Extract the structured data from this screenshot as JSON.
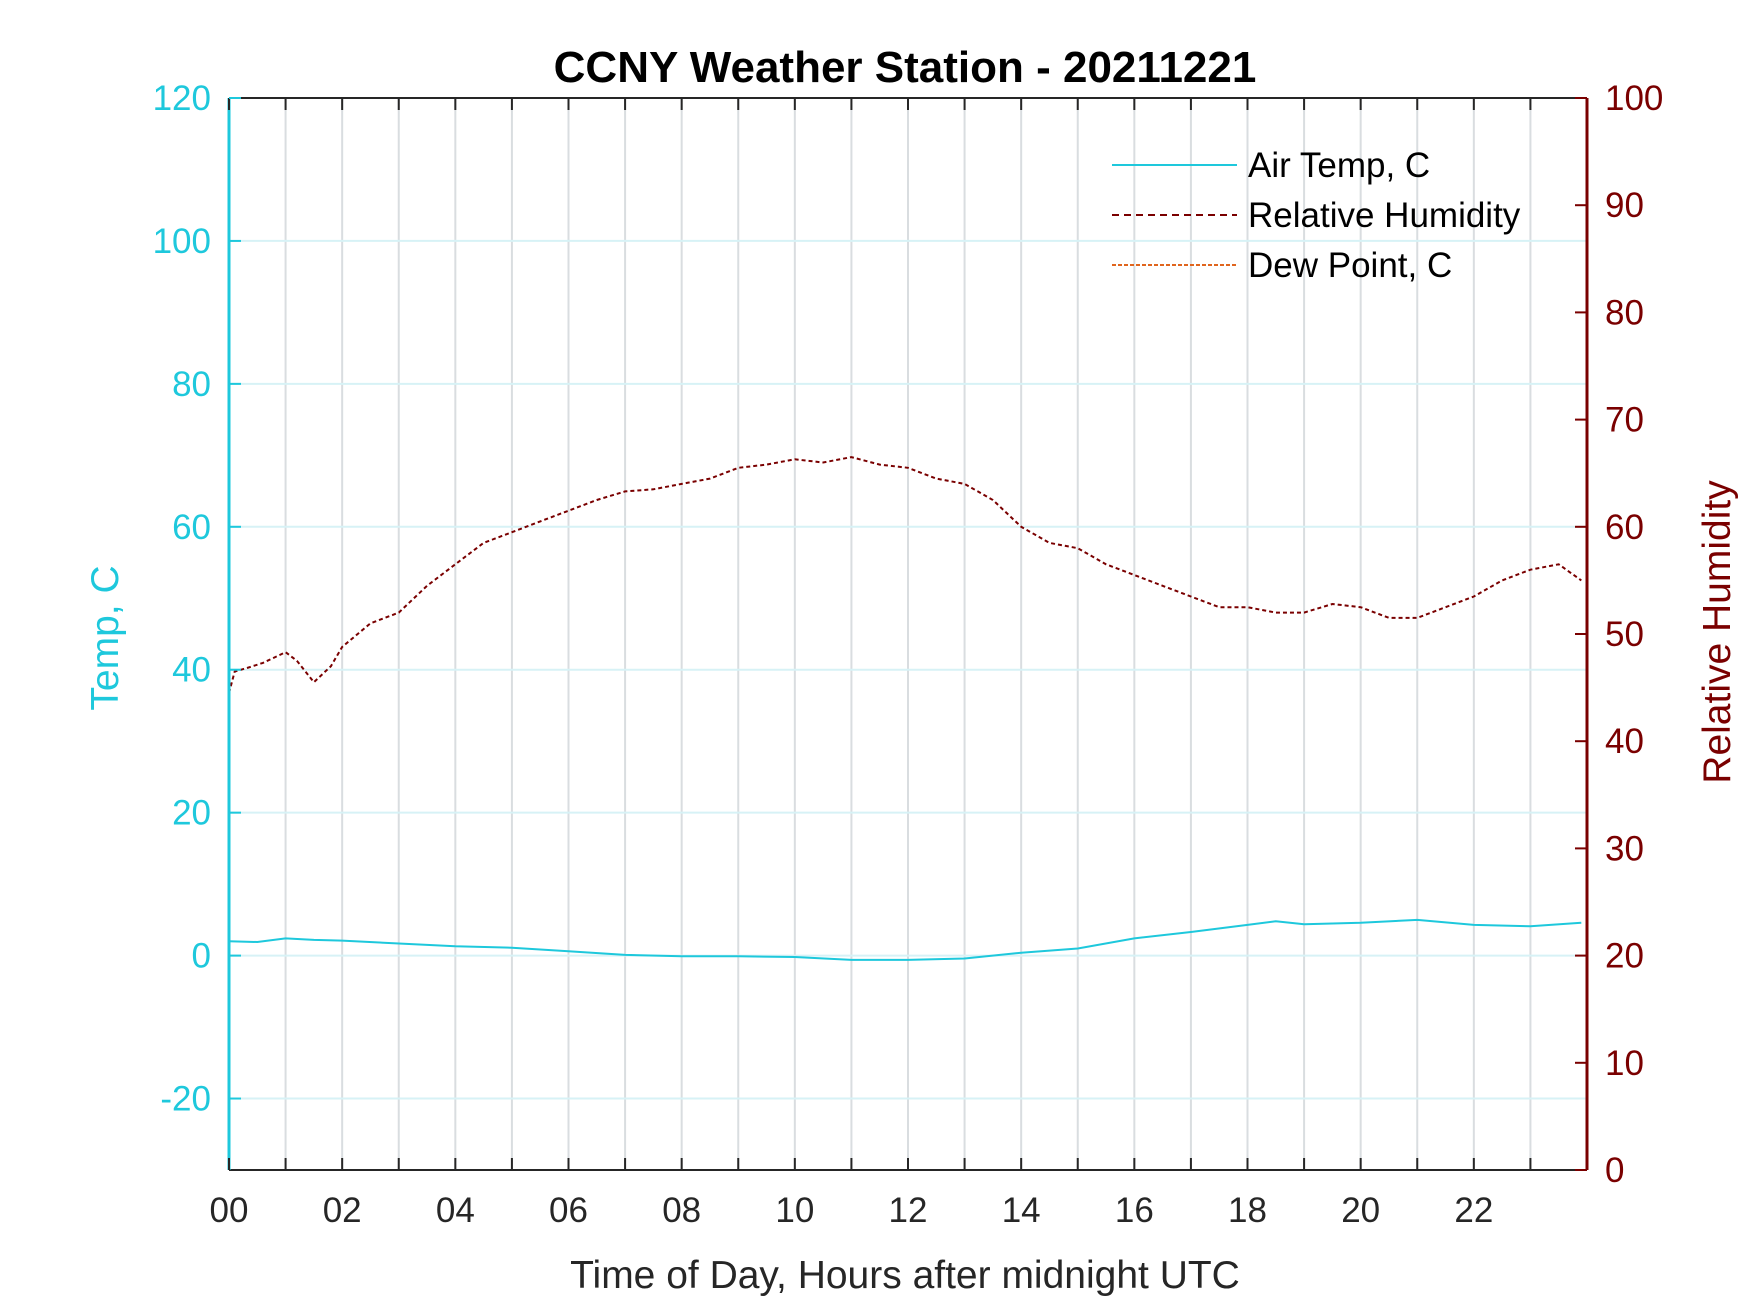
{
  "colors": {
    "temp": "#1ec8dc",
    "humidity": "#7a0000",
    "dewpoint": "#e0651e",
    "grid": "#d9dde0",
    "axis": "#262626"
  },
  "chart_data": {
    "type": "line",
    "title": "CCNY Weather Station - 20211221",
    "xlabel": "Time of Day, Hours after midnight UTC",
    "ylabel_left": "Temp, C",
    "ylabel_right": "Relative Humidity",
    "xlim": [
      0,
      24
    ],
    "ylim_left": [
      -30,
      120
    ],
    "ylim_right": [
      0,
      100
    ],
    "x_ticks": [
      0,
      2,
      4,
      6,
      8,
      10,
      12,
      14,
      16,
      18,
      20,
      22
    ],
    "x_tick_labels": [
      "00",
      "02",
      "04",
      "06",
      "08",
      "10",
      "12",
      "14",
      "16",
      "18",
      "20",
      "22"
    ],
    "x_minor_ticks": [
      1,
      3,
      5,
      7,
      9,
      11,
      13,
      15,
      17,
      19,
      21,
      23
    ],
    "y_left_ticks": [
      -20,
      0,
      20,
      40,
      60,
      80,
      100,
      120
    ],
    "y_left_tick_labels": [
      "-20",
      "0",
      "20",
      "40",
      "60",
      "80",
      "100",
      "120"
    ],
    "y_right_ticks": [
      0,
      10,
      20,
      30,
      40,
      50,
      60,
      70,
      80,
      90,
      100
    ],
    "y_right_tick_labels": [
      "0",
      "10",
      "20",
      "30",
      "40",
      "50",
      "60",
      "70",
      "80",
      "90",
      "100"
    ],
    "grid": true,
    "legend_position": "top-right",
    "series": [
      {
        "name": "Air Temp, C",
        "axis": "left",
        "style": "solid",
        "x": [
          0,
          0.5,
          1,
          1.5,
          2,
          3,
          4,
          5,
          6,
          7,
          8,
          9,
          10,
          11,
          12,
          13,
          14,
          15,
          16,
          17,
          18,
          18.5,
          19,
          20,
          21,
          22,
          23,
          23.9
        ],
        "y": [
          2.0,
          1.9,
          2.4,
          2.2,
          2.1,
          1.7,
          1.3,
          1.1,
          0.6,
          0.1,
          -0.1,
          -0.1,
          -0.2,
          -0.6,
          -0.6,
          -0.4,
          0.4,
          1.0,
          2.4,
          3.3,
          4.3,
          4.8,
          4.4,
          4.6,
          5.0,
          4.3,
          4.1,
          4.6
        ]
      },
      {
        "name": "Relative Humidity",
        "axis": "right",
        "style": "dashed",
        "x": [
          0,
          0.1,
          0.3,
          0.6,
          1.0,
          1.2,
          1.5,
          1.8,
          2.0,
          2.5,
          3.0,
          3.5,
          4.0,
          4.5,
          5.0,
          5.5,
          6.0,
          6.5,
          7.0,
          7.5,
          8.0,
          8.5,
          9.0,
          9.5,
          10.0,
          10.5,
          11.0,
          11.5,
          12.0,
          12.5,
          13.0,
          13.5,
          14.0,
          14.5,
          15.0,
          15.5,
          16.0,
          16.5,
          17.0,
          17.5,
          18.0,
          18.5,
          19.0,
          19.5,
          20.0,
          20.5,
          21.0,
          21.5,
          22.0,
          22.5,
          23.0,
          23.5,
          23.9
        ],
        "y": [
          44.5,
          46.5,
          46.8,
          47.3,
          48.3,
          47.5,
          45.5,
          47.0,
          48.8,
          51.0,
          52.0,
          54.5,
          56.5,
          58.5,
          59.5,
          60.5,
          61.5,
          62.5,
          63.3,
          63.5,
          64.0,
          64.5,
          65.5,
          65.8,
          66.3,
          66.0,
          66.5,
          65.8,
          65.5,
          64.5,
          64.0,
          62.5,
          60.0,
          58.5,
          58.0,
          56.5,
          55.5,
          54.5,
          53.5,
          52.5,
          52.5,
          52.0,
          52.0,
          52.8,
          52.5,
          51.5,
          51.5,
          52.5,
          53.5,
          55.0,
          56.0,
          56.5,
          55.0
        ]
      },
      {
        "name": "Dew Point, C",
        "axis": "left",
        "style": "dashdot",
        "x": [],
        "y": []
      }
    ]
  }
}
